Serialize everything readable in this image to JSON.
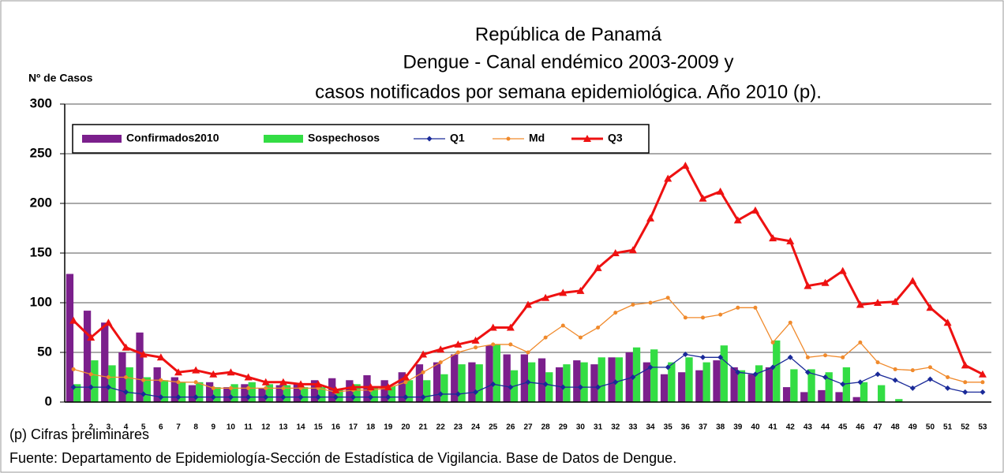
{
  "chart_data": {
    "type": "bar",
    "title": [
      "República de Panamá",
      "Dengue - Canal endémico 2003-2009 y",
      "casos notificados por semana epidemiológica. Año 2010 (p)."
    ],
    "y_label": "Nº de Casos",
    "notes": [
      "(p) Cifras preliminares",
      "Fuente: Departamento de Epidemiología-Sección de Estadística de Vigilancia. Base de Datos de Dengue."
    ],
    "categories": [
      "1",
      "2",
      "3",
      "4",
      "5",
      "6",
      "7",
      "8",
      "9",
      "10",
      "11",
      "12",
      "13",
      "14",
      "15",
      "16",
      "17",
      "18",
      "19",
      "20",
      "21",
      "22",
      "23",
      "24",
      "25",
      "26",
      "27",
      "28",
      "29",
      "30",
      "31",
      "32",
      "33",
      "34",
      "35",
      "36",
      "37",
      "38",
      "39",
      "40",
      "41",
      "42",
      "43",
      "44",
      "45",
      "46",
      "47",
      "48",
      "49",
      "50",
      "51",
      "52",
      "53"
    ],
    "ylim": [
      0,
      300
    ],
    "yticks": [
      0,
      50,
      100,
      150,
      200,
      250,
      300
    ],
    "grid": true,
    "legend": "top-left",
    "series": [
      {
        "name": "Confirmados2010",
        "type": "bar",
        "color": "#7b1f8c",
        "values": [
          129,
          92,
          80,
          50,
          70,
          35,
          25,
          17,
          20,
          15,
          18,
          14,
          17,
          18,
          22,
          24,
          22,
          27,
          22,
          30,
          38,
          40,
          48,
          40,
          57,
          48,
          48,
          44,
          35,
          42,
          38,
          45,
          50,
          40,
          28,
          30,
          32,
          42,
          35,
          28,
          35,
          15,
          10,
          12,
          10,
          5,
          0,
          0,
          0,
          0,
          0,
          0,
          0
        ]
      },
      {
        "name": "Sospechosos",
        "type": "bar",
        "color": "#33dd44",
        "values": [
          18,
          42,
          37,
          35,
          25,
          22,
          20,
          20,
          15,
          18,
          20,
          18,
          17,
          15,
          15,
          12,
          18,
          15,
          16,
          22,
          22,
          28,
          38,
          38,
          58,
          32,
          40,
          30,
          38,
          40,
          45,
          45,
          55,
          53,
          40,
          45,
          40,
          57,
          32,
          37,
          62,
          33,
          33,
          30,
          35,
          20,
          17,
          3,
          0,
          0,
          0,
          0,
          0
        ]
      },
      {
        "name": "Q1",
        "type": "line",
        "marker": "diamond",
        "color": "#1a2a99",
        "values": [
          15,
          15,
          15,
          10,
          8,
          5,
          5,
          5,
          5,
          5,
          5,
          5,
          5,
          5,
          5,
          5,
          5,
          5,
          5,
          5,
          5,
          8,
          8,
          10,
          18,
          15,
          20,
          18,
          15,
          15,
          15,
          20,
          25,
          35,
          35,
          48,
          45,
          45,
          30,
          28,
          35,
          45,
          30,
          25,
          18,
          20,
          28,
          22,
          14,
          23,
          14,
          10,
          10
        ]
      },
      {
        "name": "Md",
        "type": "line",
        "marker": "circle",
        "color": "#f08a2c",
        "values": [
          33,
          28,
          25,
          25,
          22,
          22,
          20,
          20,
          14,
          14,
          14,
          14,
          14,
          14,
          14,
          10,
          12,
          12,
          14,
          20,
          30,
          40,
          50,
          55,
          58,
          58,
          50,
          65,
          77,
          65,
          75,
          90,
          98,
          100,
          105,
          85,
          85,
          88,
          95,
          95,
          60,
          80,
          45,
          47,
          45,
          60,
          40,
          33,
          32,
          35,
          25,
          20,
          20
        ]
      },
      {
        "name": "Q3",
        "type": "line",
        "marker": "triangle",
        "color": "#ee1111",
        "values": [
          82,
          65,
          80,
          55,
          48,
          45,
          30,
          32,
          28,
          30,
          25,
          20,
          20,
          18,
          18,
          12,
          15,
          15,
          15,
          25,
          48,
          53,
          58,
          62,
          75,
          75,
          98,
          105,
          110,
          112,
          135,
          150,
          153,
          185,
          225,
          238,
          205,
          212,
          183,
          193,
          165,
          162,
          117,
          120,
          132,
          98,
          100,
          101,
          122,
          95,
          80,
          37,
          28
        ]
      }
    ]
  }
}
